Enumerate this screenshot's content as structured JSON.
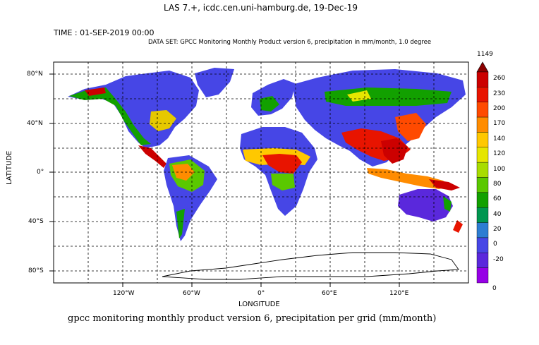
{
  "header": {
    "title": "LAS 7.+, icdc.cen.uni-hamburg.de, 19-Dec-19",
    "time_line": "TIME : 01-SEP-2019 00:00",
    "dataset_line": "DATA SET: GPCC Monitoring Monthly Product version 6, precipitation in mm/month, 1.0 degree"
  },
  "map": {
    "projection": "equirectangular",
    "lon_range": [
      -180,
      180
    ],
    "lat_range": [
      -90,
      90
    ],
    "xlabel": "LONGITUDE",
    "ylabel": "LATITUDE",
    "lon_ticks": [
      {
        "value": -120,
        "label": "120°W"
      },
      {
        "value": -60,
        "label": "60°W"
      },
      {
        "value": 0,
        "label": "0°"
      },
      {
        "value": 60,
        "label": "60°E"
      },
      {
        "value": 120,
        "label": "120°E"
      }
    ],
    "lat_ticks": [
      {
        "value": 80,
        "label": "80°N"
      },
      {
        "value": 40,
        "label": "40°N"
      },
      {
        "value": 0,
        "label": "0°"
      },
      {
        "value": -40,
        "label": "40°S"
      },
      {
        "value": -80,
        "label": "80°S"
      }
    ],
    "grid": "dashed",
    "ocean_color": "#ffffff"
  },
  "colorbar": {
    "max_label": "1149",
    "min_label": "0",
    "levels": [
      "260",
      "230",
      "200",
      "170",
      "140",
      "120",
      "100",
      "80",
      "60",
      "40",
      "20",
      "0",
      "-20"
    ],
    "colors": [
      "#cc0000",
      "#e81400",
      "#ff4a00",
      "#ff8c00",
      "#ffc800",
      "#e6e600",
      "#a8dc00",
      "#5ac800",
      "#12a000",
      "#009650",
      "#2d7dd2",
      "#4646e6",
      "#5a28dc",
      "#9600e6"
    ]
  },
  "footer": {
    "caption": "gpcc monitoring monthly product version 6, precipitation per grid (mm/month)"
  }
}
